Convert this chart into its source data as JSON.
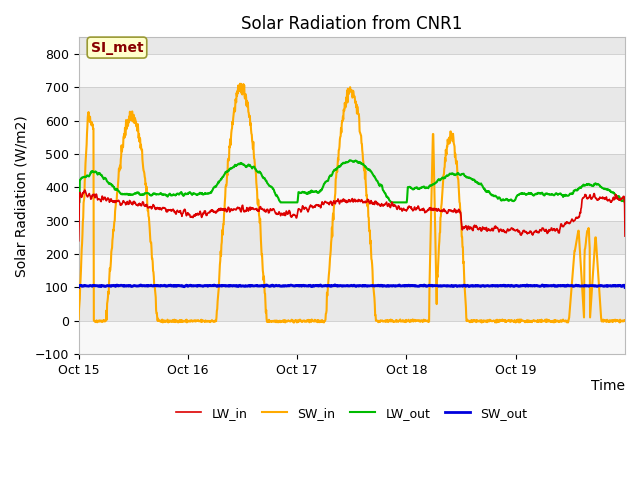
{
  "title": "Solar Radiation from CNR1",
  "xlabel": "Time",
  "ylabel": "Solar Radiation (W/m2)",
  "ylim": [
    -100,
    850
  ],
  "yticks": [
    -100,
    0,
    100,
    200,
    300,
    400,
    500,
    600,
    700,
    800
  ],
  "xtick_labels": [
    "Oct 15",
    "Oct 16",
    "Oct 17",
    "Oct 18",
    "Oct 19"
  ],
  "colors": {
    "LW_in": "#dd0000",
    "SW_in": "#ffaa00",
    "LW_out": "#00bb00",
    "SW_out": "#0000dd"
  },
  "linewidths": {
    "LW_in": 1.2,
    "SW_in": 1.5,
    "LW_out": 1.5,
    "SW_out": 2.0
  },
  "fig_bg": "#ffffff",
  "plot_bg_light": "#f8f8f8",
  "plot_bg_dark": "#e8e8e8",
  "annotation_text": "SI_met",
  "annotation_color": "#880000",
  "annotation_bg": "#ffffcc",
  "annotation_edge": "#999933",
  "title_fontsize": 12,
  "axis_label_fontsize": 10,
  "tick_fontsize": 9
}
